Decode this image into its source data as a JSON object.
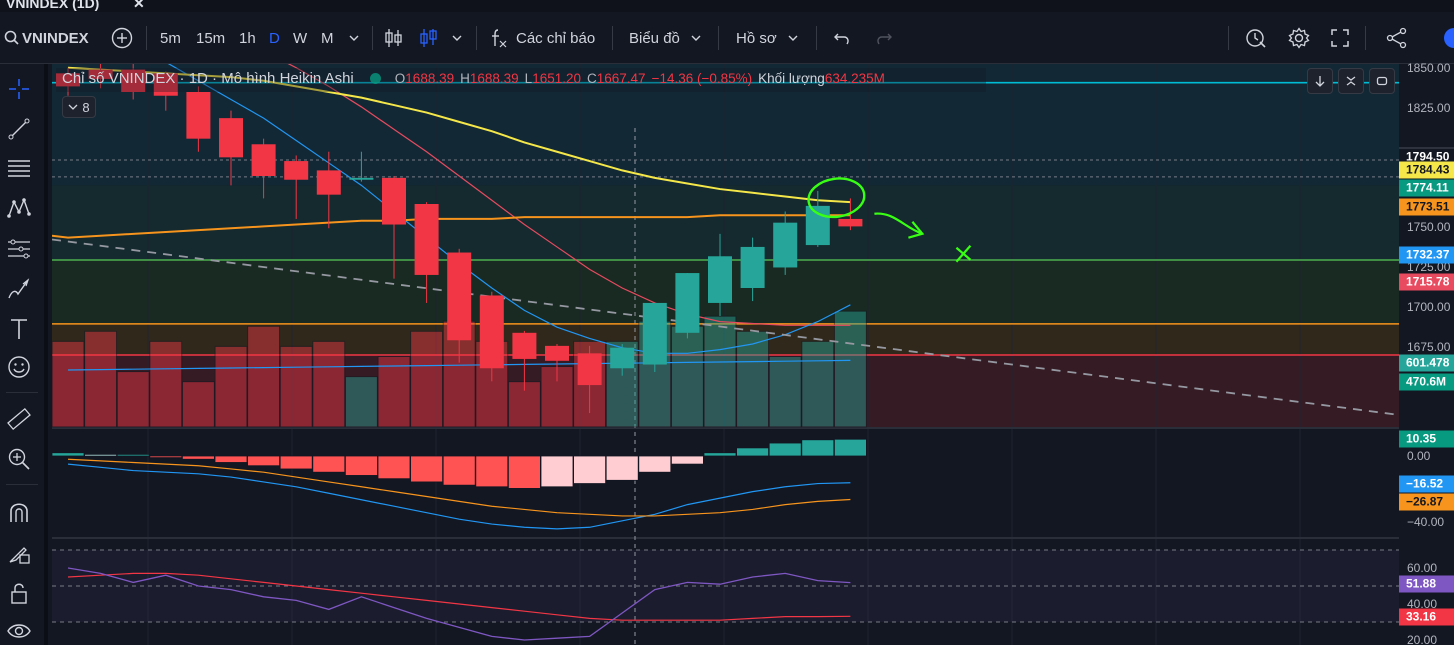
{
  "window": {
    "title": "VNINDEX (1D)",
    "close": "✕"
  },
  "toolbar": {
    "symbol": "VNINDEX",
    "intervals": [
      "5m",
      "15m",
      "1h",
      "D",
      "W",
      "M"
    ],
    "active_interval": "D",
    "indicators_label": "Các chỉ báo",
    "chart_label": "Biểu đồ",
    "profile_label": "Hồ sơ"
  },
  "legend": {
    "title": "Chỉ số VNINDEX · 1D · Mô hình Heikin Ashi",
    "open_key": "O",
    "open": "1688.39",
    "high_key": "H",
    "high": "1688.39",
    "low_key": "L",
    "low": "1651.20",
    "close_key": "C",
    "close": "1667.47",
    "change": "−14.36 (−0.85%)",
    "volume_key": "Khối lượng",
    "volume": "634.235M",
    "collapsed_count": "8"
  },
  "price_scale": {
    "ticks": [
      "1850.00",
      "1825.00",
      "1750.00",
      "1725.00",
      "1700.00",
      "1675.00",
      "0.00",
      "−40.00",
      "60.00",
      "40.00",
      "20.00"
    ],
    "badges": [
      {
        "text": "1794.50",
        "bg": "#131722",
        "fg": "#ffffff"
      },
      {
        "text": "1784.43",
        "bg": "#f5e74a",
        "fg": "#131722"
      },
      {
        "text": "1774.11",
        "bg": "#089981",
        "fg": "#ffffff"
      },
      {
        "text": "1773.51",
        "bg": "#f7941d",
        "fg": "#131722"
      },
      {
        "text": "1732.37",
        "bg": "#2196f3",
        "fg": "#ffffff"
      },
      {
        "text": "1715.78",
        "bg": "#e84a5f",
        "fg": "#ffffff"
      },
      {
        "text": "601.478",
        "bg": "#26a69a",
        "fg": "#ffffff"
      },
      {
        "text": "470.6M",
        "bg": "#089981",
        "fg": "#ffffff"
      },
      {
        "text": "10.35",
        "bg": "#089981",
        "fg": "#ffffff"
      },
      {
        "text": "−16.52",
        "bg": "#2196f3",
        "fg": "#ffffff"
      },
      {
        "text": "−26.87",
        "bg": "#f7941d",
        "fg": "#131722"
      },
      {
        "text": "51.88",
        "bg": "#7e57c2",
        "fg": "#ffffff"
      },
      {
        "text": "33.16",
        "bg": "#f23645",
        "fg": "#ffffff"
      }
    ]
  },
  "colors": {
    "up": "#26a69a",
    "down": "#f23645",
    "background": "#131722",
    "ma_yellow": "#f5e74a",
    "ma_orange": "#f7941d",
    "ma_blue": "#2196f3",
    "ma_red": "#e84a5f",
    "hline_cyan": "#00bcd4",
    "hline_green": "#4caf50",
    "rsi": "#7e57c2"
  },
  "icons": [
    "plus-circle-icon",
    "candles-icon",
    "chart-type-icon",
    "fx-icon",
    "undo-icon",
    "redo-icon",
    "alert-icon",
    "settings-icon",
    "fullscreen-icon",
    "share-icon",
    "crosshair-icon",
    "trendline-icon",
    "fib-icon",
    "pattern-icon",
    "forecast-icon",
    "brush-icon",
    "text-icon",
    "emoji-icon",
    "ruler-icon",
    "zoom-icon",
    "magnet-icon",
    "lock-drawing-icon",
    "lock-icon",
    "eye-icon"
  ],
  "chart_data": {
    "type": "candlestick",
    "title": "Chỉ số VNINDEX · 1D · Mô hình Heikin Ashi",
    "y_range": [
      1660,
      1855
    ],
    "candles": [
      {
        "o": 1850,
        "h": 1853,
        "l": 1838,
        "c": 1843
      },
      {
        "o": 1852,
        "h": 1856,
        "l": 1842,
        "c": 1847
      },
      {
        "o": 1852,
        "h": 1855,
        "l": 1836,
        "c": 1840
      },
      {
        "o": 1850,
        "h": 1851,
        "l": 1830,
        "c": 1838
      },
      {
        "o": 1840,
        "h": 1843,
        "l": 1808,
        "c": 1815
      },
      {
        "o": 1826,
        "h": 1830,
        "l": 1790,
        "c": 1805
      },
      {
        "o": 1812,
        "h": 1815,
        "l": 1783,
        "c": 1795
      },
      {
        "o": 1803,
        "h": 1806,
        "l": 1772,
        "c": 1793
      },
      {
        "o": 1798,
        "h": 1808,
        "l": 1767,
        "c": 1785
      },
      {
        "o": 1793,
        "h": 1808,
        "l": 1792,
        "c": 1794
      },
      {
        "o": 1794,
        "h": 1795,
        "l": 1740,
        "c": 1769
      },
      {
        "o": 1780,
        "h": 1781,
        "l": 1727,
        "c": 1742
      },
      {
        "o": 1754,
        "h": 1756,
        "l": 1695,
        "c": 1707
      },
      {
        "o": 1731,
        "h": 1733,
        "l": 1685,
        "c": 1692
      },
      {
        "o": 1711,
        "h": 1712,
        "l": 1680,
        "c": 1697
      },
      {
        "o": 1704,
        "h": 1705,
        "l": 1685,
        "c": 1696
      },
      {
        "o": 1700,
        "h": 1704,
        "l": 1668,
        "c": 1683
      },
      {
        "o": 1692,
        "h": 1705,
        "l": 1688,
        "c": 1703
      },
      {
        "o": 1694,
        "h": 1727,
        "l": 1690,
        "c": 1727
      },
      {
        "o": 1711,
        "h": 1743,
        "l": 1708,
        "c": 1743
      },
      {
        "o": 1727,
        "h": 1764,
        "l": 1720,
        "c": 1752
      },
      {
        "o": 1735,
        "h": 1762,
        "l": 1728,
        "c": 1757
      },
      {
        "o": 1746,
        "h": 1776,
        "l": 1742,
        "c": 1770
      },
      {
        "o": 1758,
        "h": 1787,
        "l": 1757,
        "c": 1779
      },
      {
        "o": 1772,
        "h": 1783,
        "l": 1766,
        "c": 1768
      }
    ],
    "horizontal_levels": [
      {
        "y": 1845,
        "color": "#00bcd4"
      },
      {
        "y": 1794.5,
        "color": "#787b86",
        "dashed": true
      },
      {
        "y": 1750,
        "color": "#4caf50"
      },
      {
        "y": 1715.78,
        "color": "#f7941d"
      }
    ],
    "volume": {
      "values": [
        600,
        620,
        540,
        600,
        520,
        590,
        630,
        590,
        600,
        530,
        570,
        620,
        640,
        600,
        520,
        550,
        600,
        600,
        640,
        630,
        650,
        620,
        570,
        600,
        660
      ],
      "up": [
        false,
        false,
        false,
        false,
        false,
        false,
        false,
        false,
        false,
        true,
        false,
        false,
        false,
        false,
        false,
        false,
        false,
        true,
        true,
        true,
        true,
        true,
        true,
        true,
        true
      ]
    },
    "macd": {
      "histogram": [
        2,
        1,
        1,
        -1,
        -2,
        -4,
        -6,
        -8,
        -10,
        -12,
        -14,
        -16,
        -18,
        -19,
        -20,
        -19,
        -17,
        -15,
        -10,
        -5,
        2,
        5,
        8,
        10,
        10.35
      ],
      "macd_line": [
        -5,
        -7,
        -9,
        -10,
        -11,
        -13,
        -16,
        -19,
        -23,
        -27,
        -31,
        -35,
        -39,
        -42,
        -44,
        -45,
        -44,
        -40,
        -36,
        -30,
        -26,
        -22,
        -19,
        -17,
        -16.52
      ],
      "signal_line": [
        -2,
        -3,
        -4,
        -5,
        -6,
        -8,
        -10,
        -13,
        -16,
        -19,
        -22,
        -25,
        -28,
        -31,
        -33,
        -35,
        -36,
        -37,
        -37,
        -36,
        -35,
        -33,
        -30,
        -28,
        -26.87
      ]
    },
    "rsi": {
      "rsi_line": [
        60,
        57,
        52,
        56,
        50,
        48,
        44,
        42,
        37,
        44,
        38,
        32,
        27,
        22,
        20,
        21,
        22,
        35,
        48,
        52,
        51,
        55,
        57,
        53,
        51.88
      ],
      "ma_line": [
        55,
        56,
        57,
        57,
        56,
        54,
        52,
        50,
        48,
        46,
        44,
        42,
        40,
        38,
        36,
        34,
        32,
        31,
        31,
        31,
        31,
        32,
        33,
        33,
        33.16
      ]
    }
  }
}
